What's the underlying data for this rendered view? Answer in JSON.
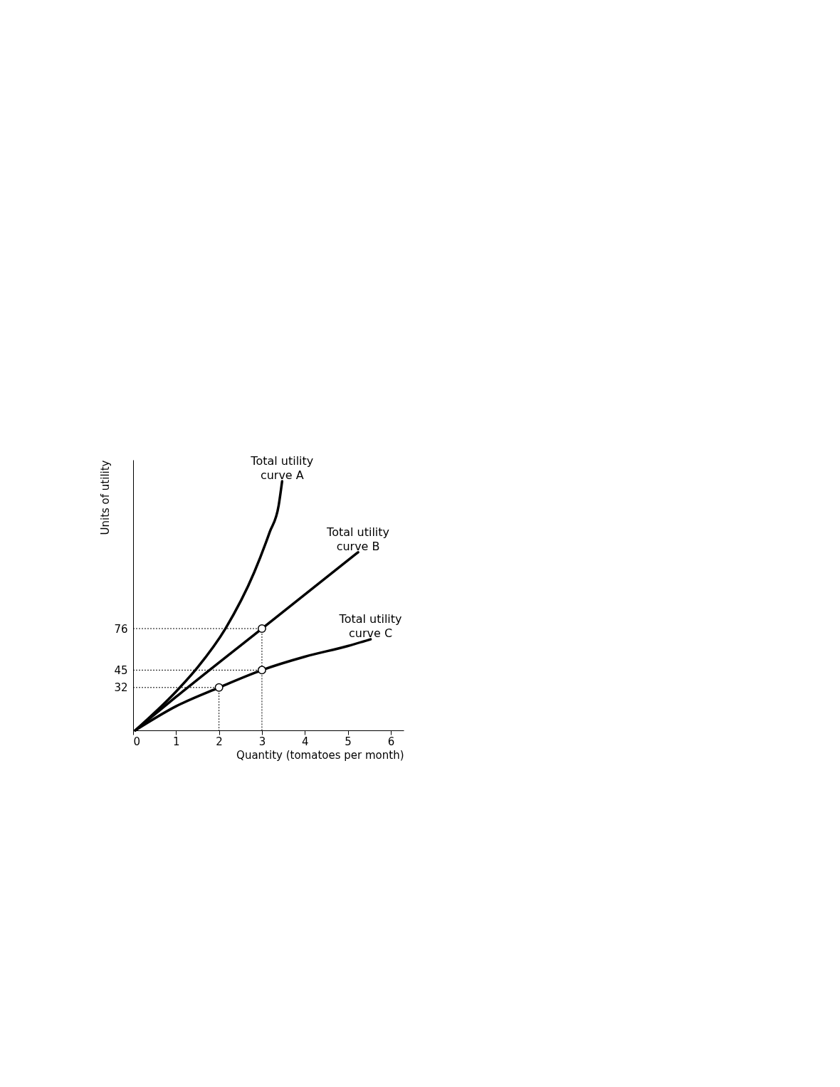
{
  "chart_data": {
    "type": "line",
    "xlabel": "Quantity (tomatoes per month)",
    "ylabel": "Units of utility",
    "xlim": [
      0,
      6.3
    ],
    "ylim": [
      0,
      202
    ],
    "xticks": [
      0,
      1,
      2,
      3,
      4,
      5,
      6
    ],
    "yticks": [
      32,
      45,
      76
    ],
    "grid": false,
    "line_style": "solid",
    "series": [
      {
        "name": "Total utility\ncurve A",
        "color": "#000000",
        "x": [
          0.05,
          1,
          1.5,
          2.15,
          2.82,
          3.18,
          3.39,
          3.47
        ],
        "values": [
          0,
          29,
          47,
          76,
          118,
          148,
          168,
          186
        ]
      },
      {
        "name": "Total utility\ncurve B",
        "color": "#000000",
        "x": [
          0.05,
          1,
          3,
          5.24
        ],
        "values": [
          0,
          25,
          76,
          133
        ]
      },
      {
        "name": "Total utility\ncurve C",
        "color": "#000000",
        "x": [
          0.05,
          1,
          2,
          3,
          4,
          5,
          5.53
        ],
        "values": [
          0,
          18,
          32,
          45,
          55,
          63,
          68
        ]
      },
      {
        "line_style": "dotted",
        "color": "#000000",
        "x": [
          0,
          2,
          2
        ],
        "values": [
          32,
          32,
          0
        ]
      },
      {
        "line_style": "dotted",
        "color": "#000000",
        "x": [
          0,
          3,
          3
        ],
        "values": [
          45,
          45,
          0
        ]
      },
      {
        "line_style": "dotted",
        "color": "#000000",
        "x": [
          0,
          3,
          3
        ],
        "values": [
          76,
          76,
          45
        ]
      },
      {
        "type": "scatter",
        "marker": "circle",
        "color": "#000000",
        "x": [
          2,
          3,
          3
        ],
        "values": [
          32,
          45,
          76
        ]
      }
    ]
  }
}
